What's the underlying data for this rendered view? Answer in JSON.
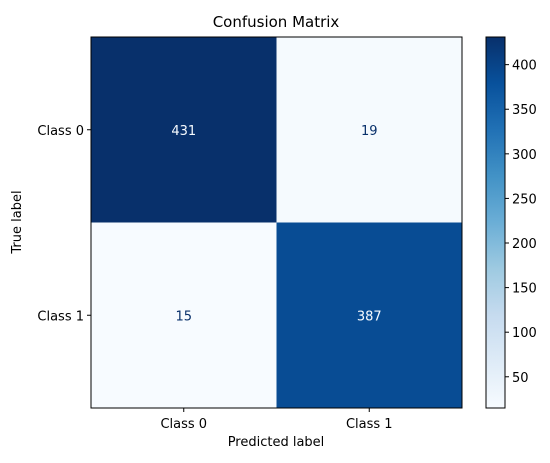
{
  "chart_data": {
    "type": "heatmap",
    "title": "Confusion Matrix",
    "xlabel": "Predicted label",
    "ylabel": "True label",
    "x_categories": [
      "Class 0",
      "Class 1"
    ],
    "y_categories": [
      "Class 0",
      "Class 1"
    ],
    "values": [
      [
        431,
        19
      ],
      [
        15,
        387
      ]
    ],
    "colormap": "Blues",
    "colorbar": {
      "range": [
        15,
        431
      ],
      "ticks": [
        50,
        100,
        150,
        200,
        250,
        300,
        350,
        400
      ]
    },
    "colors": {
      "low": "#f7fbff",
      "high": "#08306b",
      "text_dark": "#08306b",
      "text_light": "#f7fbff"
    }
  }
}
